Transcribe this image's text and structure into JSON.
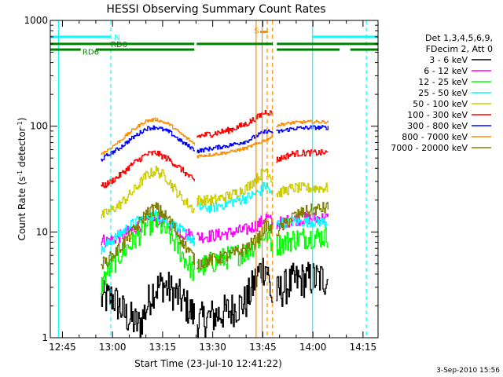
{
  "chart_data": {
    "type": "line",
    "title": "HESSI Observing Summary Count Rates",
    "xlabel": "Start Time (23-Jul-10 12:41:22)",
    "ylabel_main": "Count Rate (s",
    "ylabel_sup1": "-1",
    "ylabel_mid": " detector",
    "ylabel_sup2": "-1",
    "ylabel_end": ")",
    "ylog": true,
    "ylim": [
      1,
      1000
    ],
    "xlim_minutes": [
      41.367,
      139.5
    ],
    "x_ticks": [
      {
        "m": 45,
        "label": "12:45"
      },
      {
        "m": 60,
        "label": "13:00"
      },
      {
        "m": 75,
        "label": "13:15"
      },
      {
        "m": 90,
        "label": "13:30"
      },
      {
        "m": 105,
        "label": "13:45"
      },
      {
        "m": 120,
        "label": "14:00"
      },
      {
        "m": 135,
        "label": "14:15"
      }
    ],
    "y_ticks": [
      {
        "v": 1,
        "label": "1"
      },
      {
        "v": 10,
        "label": "10"
      },
      {
        "v": 100,
        "label": "100"
      },
      {
        "v": 1000,
        "label": "1000"
      }
    ],
    "legend": {
      "header1": "Det 1,3,4,5,6,9,",
      "header2": "FDecim 2, Att 0",
      "position": "right",
      "entries": [
        {
          "label": "3 - 6 keV",
          "color": "#000000"
        },
        {
          "label": "6 - 12 keV",
          "color": "#ff00ff"
        },
        {
          "label": "12 - 25 keV",
          "color": "#00ff00"
        },
        {
          "label": "25 - 50 keV",
          "color": "#00ffff"
        },
        {
          "label": "50 - 100 keV",
          "color": "#cccc00"
        },
        {
          "label": "100 - 300 keV",
          "color": "#ff0000"
        },
        {
          "label": "300 - 800 keV",
          "color": "#0000ff"
        },
        {
          "label": "800 - 7000 keV",
          "color": "#ff8c00"
        },
        {
          "label": "7000 - 20000 keV",
          "color": "#808000"
        }
      ]
    },
    "segments": [
      [
        56.5,
        84.5
      ],
      [
        85.2,
        108
      ],
      [
        109,
        124.5
      ]
    ],
    "series": [
      {
        "name": "3 - 6 keV",
        "color": "#000000",
        "noise": 0.35,
        "points": [
          [
            56.5,
            2.3
          ],
          [
            60,
            2.4
          ],
          [
            64,
            1.6
          ],
          [
            68,
            1.3
          ],
          [
            72,
            2.8
          ],
          [
            75,
            3.2
          ],
          [
            80,
            2.4
          ],
          [
            84.5,
            1.6
          ],
          [
            85.2,
            1.4
          ],
          [
            90,
            1.6
          ],
          [
            95,
            1.8
          ],
          [
            100,
            2.2
          ],
          [
            104,
            4.3
          ],
          [
            106,
            4.8
          ],
          [
            108,
            2.0
          ],
          [
            109,
            2.6
          ],
          [
            114,
            3.4
          ],
          [
            119,
            3.6
          ],
          [
            124.5,
            3.6
          ]
        ]
      },
      {
        "name": "6 - 12 keV",
        "color": "#ff00ff",
        "noise": 0.12,
        "points": [
          [
            56.5,
            8.5
          ],
          [
            58,
            8.2
          ],
          [
            62,
            9.0
          ],
          [
            66,
            10.5
          ],
          [
            70,
            12.5
          ],
          [
            74,
            13.0
          ],
          [
            78,
            11.5
          ],
          [
            81,
            9.5
          ],
          [
            84.5,
            9.5
          ],
          [
            85.2,
            9.0
          ],
          [
            90,
            9.2
          ],
          [
            95,
            9.8
          ],
          [
            100,
            10.5
          ],
          [
            104,
            12.0
          ],
          [
            106,
            14.0
          ],
          [
            108,
            12.0
          ],
          [
            109,
            12.0
          ],
          [
            114,
            13.0
          ],
          [
            119,
            13.5
          ],
          [
            124.5,
            13.5
          ]
        ]
      },
      {
        "name": "12 - 25 keV",
        "color": "#00ff00",
        "noise": 0.22,
        "points": [
          [
            56.5,
            3.0
          ],
          [
            58,
            4.0
          ],
          [
            62,
            6.0
          ],
          [
            66,
            8.0
          ],
          [
            70,
            11.5
          ],
          [
            73,
            12.5
          ],
          [
            77,
            9.5
          ],
          [
            81,
            6.0
          ],
          [
            84.5,
            4.0
          ],
          [
            85.2,
            4.5
          ],
          [
            90,
            5.2
          ],
          [
            95,
            5.8
          ],
          [
            100,
            6.5
          ],
          [
            104,
            8.5
          ],
          [
            106,
            10.0
          ],
          [
            108,
            7.5
          ],
          [
            109,
            7.5
          ],
          [
            114,
            8.5
          ],
          [
            119,
            9.0
          ],
          [
            124.5,
            9.0
          ]
        ]
      },
      {
        "name": "25 - 50 keV",
        "color": "#00ffff",
        "noise": 0.1,
        "points": [
          [
            56.5,
            6.5
          ],
          [
            58,
            7.5
          ],
          [
            62,
            9.5
          ],
          [
            66,
            12.0
          ],
          [
            70,
            14.0
          ],
          [
            73,
            14.5
          ],
          [
            77,
            12.5
          ],
          [
            81,
            10.0
          ],
          [
            84.5,
            8.0
          ],
          [
            85.2,
            17.0
          ],
          [
            90,
            17.0
          ],
          [
            95,
            19.0
          ],
          [
            100,
            21.0
          ],
          [
            104,
            24.0
          ],
          [
            106,
            28.0
          ],
          [
            108,
            21.0
          ],
          [
            109,
            12.0
          ],
          [
            114,
            12.5
          ],
          [
            119,
            12.5
          ],
          [
            124.5,
            12.5
          ]
        ]
      },
      {
        "name": "50 - 100 keV",
        "color": "#cccc00",
        "noise": 0.1,
        "points": [
          [
            56.5,
            14.0
          ],
          [
            58,
            15.0
          ],
          [
            62,
            18.0
          ],
          [
            66,
            24.0
          ],
          [
            70,
            34.0
          ],
          [
            73,
            38.0
          ],
          [
            76,
            33.0
          ],
          [
            80,
            22.0
          ],
          [
            84.5,
            16.0
          ],
          [
            85.2,
            20.0
          ],
          [
            90,
            20.0
          ],
          [
            95,
            22.0
          ],
          [
            100,
            26.0
          ],
          [
            104,
            34.0
          ],
          [
            106,
            40.0
          ],
          [
            108,
            30.0
          ],
          [
            109,
            23.0
          ],
          [
            114,
            26.0
          ],
          [
            119,
            26.0
          ],
          [
            124.5,
            26.0
          ]
        ]
      },
      {
        "name": "100 - 300 keV",
        "color": "#ff0000",
        "noise": 0.06,
        "points": [
          [
            56.5,
            27.0
          ],
          [
            58,
            28.0
          ],
          [
            62,
            34.0
          ],
          [
            66,
            44.0
          ],
          [
            70,
            54.0
          ],
          [
            73,
            56.0
          ],
          [
            77,
            48.0
          ],
          [
            81,
            38.0
          ],
          [
            84.5,
            30.0
          ],
          [
            85.2,
            80.0
          ],
          [
            90,
            85.0
          ],
          [
            95,
            92.0
          ],
          [
            100,
            105.0
          ],
          [
            104,
            125.0
          ],
          [
            106,
            138.0
          ],
          [
            108,
            130.0
          ],
          [
            109,
            48.0
          ],
          [
            114,
            55.0
          ],
          [
            119,
            56.0
          ],
          [
            124.5,
            56.0
          ]
        ]
      },
      {
        "name": "300 - 800 keV",
        "color": "#0000ff",
        "noise": 0.04,
        "points": [
          [
            56.5,
            48.0
          ],
          [
            58,
            52.0
          ],
          [
            62,
            62.0
          ],
          [
            66,
            78.0
          ],
          [
            70,
            95.0
          ],
          [
            73,
            98.0
          ],
          [
            77,
            88.0
          ],
          [
            81,
            70.0
          ],
          [
            84.5,
            60.0
          ],
          [
            85.2,
            58.0
          ],
          [
            90,
            62.0
          ],
          [
            95,
            66.0
          ],
          [
            100,
            72.0
          ],
          [
            104,
            84.0
          ],
          [
            106,
            90.0
          ],
          [
            108,
            88.0
          ],
          [
            109,
            88.0
          ],
          [
            114,
            95.0
          ],
          [
            119,
            97.0
          ],
          [
            124.5,
            97.0
          ]
        ]
      },
      {
        "name": "800 - 7000 keV",
        "color": "#ff8c00",
        "noise": 0.03,
        "points": [
          [
            56.5,
            55.0
          ],
          [
            58,
            58.0
          ],
          [
            62,
            72.0
          ],
          [
            66,
            92.0
          ],
          [
            70,
            112.0
          ],
          [
            73,
            116.0
          ],
          [
            77,
            104.0
          ],
          [
            81,
            82.0
          ],
          [
            84.5,
            68.0
          ],
          [
            85.2,
            52.0
          ],
          [
            90,
            54.0
          ],
          [
            95,
            57.0
          ],
          [
            100,
            62.0
          ],
          [
            104,
            70.0
          ],
          [
            106,
            75.0
          ],
          [
            108,
            80.0
          ],
          [
            109,
            102.0
          ],
          [
            114,
            108.0
          ],
          [
            119,
            110.0
          ],
          [
            124.5,
            110.0
          ]
        ]
      },
      {
        "name": "7000 - 20000 keV",
        "color": "#808000",
        "noise": 0.12,
        "points": [
          [
            56.5,
            5.0
          ],
          [
            58,
            5.2
          ],
          [
            62,
            7.0
          ],
          [
            66,
            10.0
          ],
          [
            70,
            15.0
          ],
          [
            73,
            17.0
          ],
          [
            77,
            13.0
          ],
          [
            81,
            8.0
          ],
          [
            84.5,
            5.5
          ],
          [
            85.2,
            5.0
          ],
          [
            90,
            5.5
          ],
          [
            95,
            6.0
          ],
          [
            100,
            7.0
          ],
          [
            104,
            9.0
          ],
          [
            106,
            12.0
          ],
          [
            108,
            10.0
          ],
          [
            109,
            10.0
          ],
          [
            114,
            14.0
          ],
          [
            119,
            16.0
          ],
          [
            124.5,
            17.0
          ]
        ]
      }
    ],
    "vertical_lines": [
      {
        "m": 43.8,
        "color": "#00ffff",
        "dash": false
      },
      {
        "m": 59.5,
        "color": "#00ffff",
        "dash": true
      },
      {
        "m": 119.9,
        "color": "#00ffff",
        "dash": false
      },
      {
        "m": 136.0,
        "color": "#00ffff",
        "dash": true
      },
      {
        "m": 103.0,
        "color": "#ff8c00",
        "dash": false
      },
      {
        "m": 106.3,
        "color": "#ff8c00",
        "dash": true
      },
      {
        "m": 104.8,
        "color": "#ff8c00",
        "dash": false
      },
      {
        "m": 107.9,
        "color": "#ff8c00",
        "dash": true
      }
    ],
    "status_bars": [
      {
        "name": "N",
        "color": "#00ffff",
        "y": 700,
        "ranges": [
          [
            41.4,
            59.5
          ],
          [
            119.9,
            139.5
          ]
        ]
      },
      {
        "name": "RD0",
        "color": "#008000",
        "y": 600,
        "ranges": [
          [
            41.4,
            84.5
          ],
          [
            85.2,
            108.0
          ],
          [
            109.2,
            139.5
          ]
        ]
      },
      {
        "name": "RD6",
        "color": "#008000",
        "y": 530,
        "ranges": [
          [
            41.4,
            50.5
          ],
          [
            55.0,
            84.5
          ],
          [
            109.2,
            128.0
          ],
          [
            131.2,
            139.5
          ]
        ]
      },
      {
        "name": "S",
        "color": "#ff8c00",
        "y": 780,
        "ranges": [
          [
            104.2,
            106.5
          ]
        ]
      }
    ],
    "markers": [
      {
        "text": "N",
        "color": "#00ffff",
        "m": 60.5,
        "y": 700
      },
      {
        "text": "RD0",
        "color": "#008000",
        "m": 59.5,
        "y": 600
      },
      {
        "text": "RD6",
        "color": "#008000",
        "m": 51.0,
        "y": 510
      },
      {
        "text": "S",
        "color": "#ff8c00",
        "m": 102.4,
        "y": 810
      }
    ],
    "footer": "3-Sep-2010 15:56"
  }
}
